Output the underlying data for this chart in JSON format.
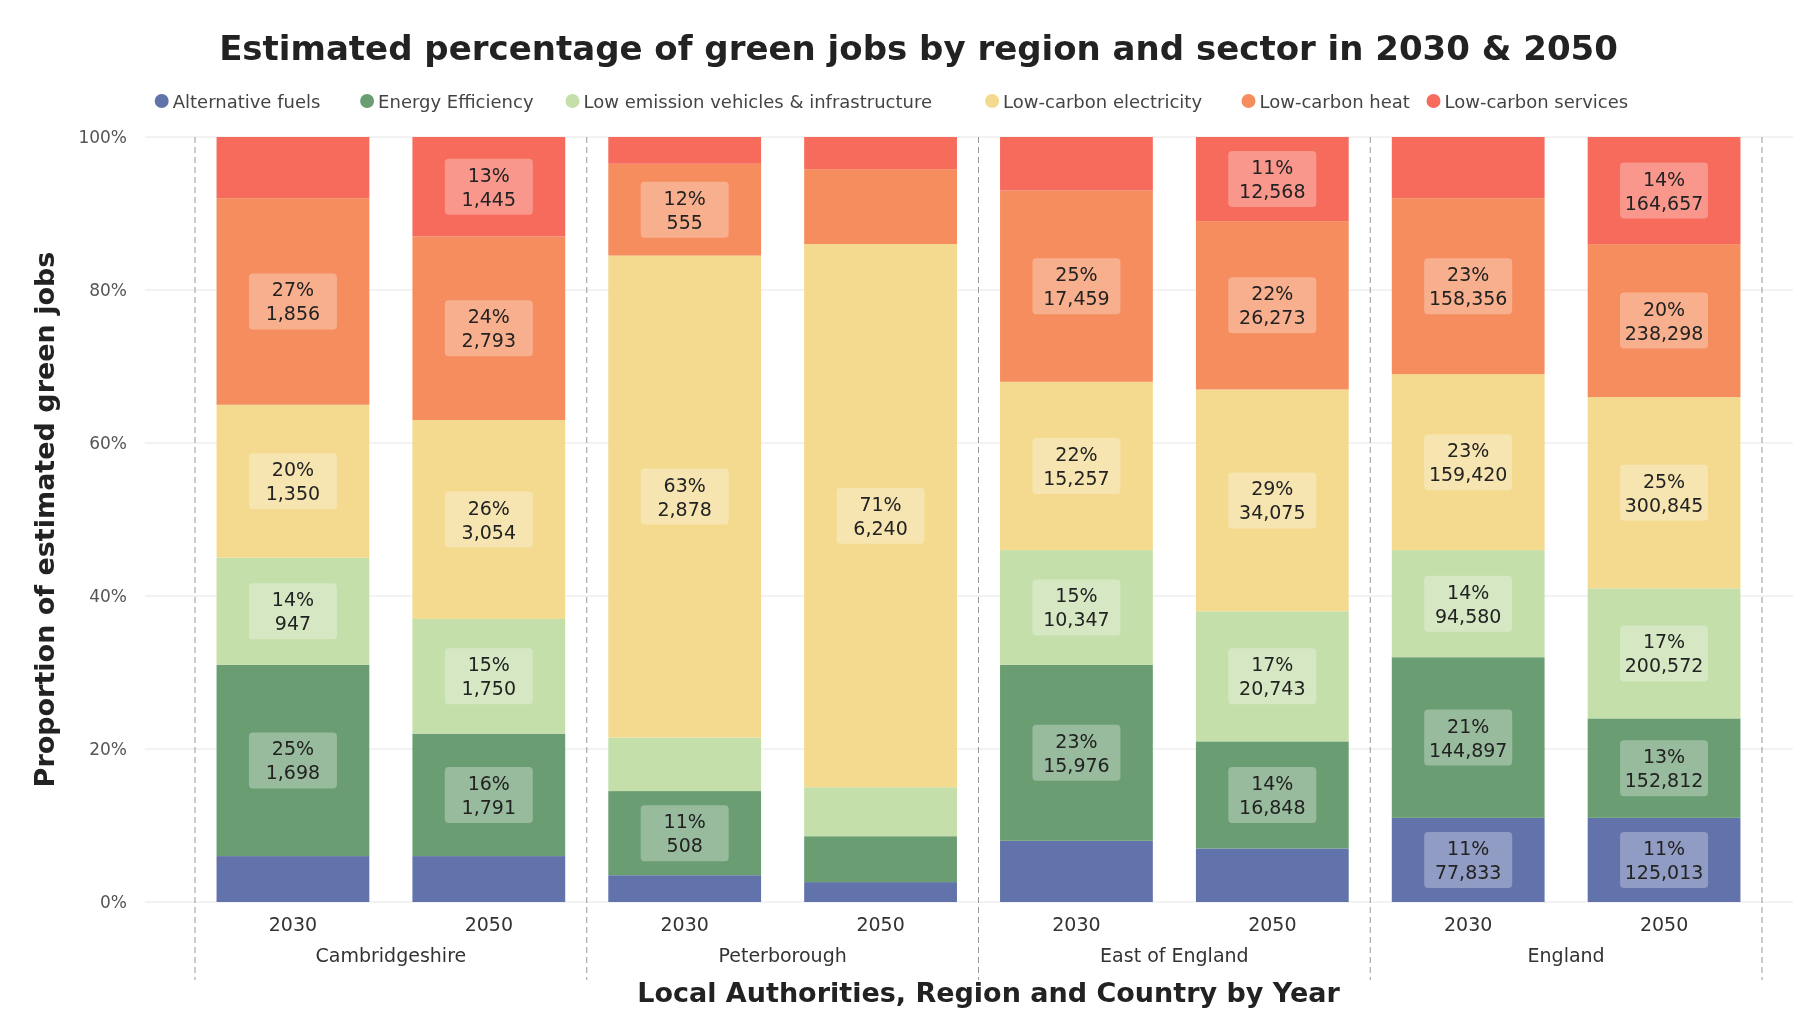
{
  "chart_data": {
    "type": "bar",
    "stacked": true,
    "title": "Estimated percentage of green jobs by region and sector in 2030 & 2050",
    "xlabel": "Local Authorities, Region and Country by Year",
    "ylabel": "Proportion of estimated green jobs",
    "categories": [
      "2030",
      "2050",
      "2030",
      "2050",
      "2030",
      "2050",
      "2030",
      "2050"
    ],
    "annotations": [
      "Cambridgeshire",
      "Peterborough",
      "East of England",
      "England"
    ],
    "ylim": [
      0,
      100
    ],
    "yticks": [
      {
        "value": 0,
        "label": "0%"
      },
      {
        "value": 20,
        "label": "20%"
      },
      {
        "value": 40,
        "label": "40%"
      },
      {
        "value": 60,
        "label": "60%"
      },
      {
        "value": 80,
        "label": "80%"
      },
      {
        "value": 100,
        "label": "100%"
      }
    ],
    "grid": "y",
    "legend": "top",
    "series": [
      {
        "name": "Alternative fuels",
        "color": "#6272ab",
        "values": [
          6,
          6,
          3.5,
          2.6,
          8,
          7,
          11,
          11
        ],
        "value_labels": [
          null,
          null,
          null,
          null,
          null,
          null,
          "11%\n77,833",
          "11%\n125,013"
        ]
      },
      {
        "name": "Energy Efficiency",
        "color": "#6a9e72",
        "values": [
          25,
          16,
          11,
          6,
          23,
          14,
          21,
          13
        ],
        "value_labels": [
          "25%\n1,698",
          "16%\n1,791",
          "11%\n508",
          null,
          "23%\n15,976",
          "14%\n16,848",
          "21%\n144,897",
          "13%\n152,812"
        ]
      },
      {
        "name": "Low emission vehicles & infrastructure",
        "color": "#c4dfa9",
        "values": [
          14,
          15,
          7,
          6.4,
          15,
          17,
          14,
          17
        ],
        "value_labels": [
          "14%\n947",
          "15%\n1,750",
          null,
          null,
          "15%\n10,347",
          "17%\n20,743",
          "14%\n94,580",
          "17%\n200,572"
        ]
      },
      {
        "name": "Low-carbon electricity",
        "color": "#f3da8e",
        "values": [
          20,
          26,
          63,
          71,
          22,
          29,
          23,
          25
        ],
        "value_labels": [
          "20%\n1,350",
          "26%\n3,054",
          "63%\n2,878",
          "71%\n6,240",
          "22%\n15,257",
          "29%\n34,075",
          "23%\n159,420",
          "25%\n300,845"
        ]
      },
      {
        "name": "Low-carbon heat",
        "color": "#f58d5e",
        "values": [
          27,
          24,
          12,
          9.8,
          25,
          22,
          23,
          20
        ],
        "value_labels": [
          "27%\n1,856",
          "24%\n2,793",
          "12%\n555",
          null,
          "25%\n17,459",
          "22%\n26,273",
          "23%\n158,356",
          "20%\n238,298"
        ]
      },
      {
        "name": "Low-carbon services",
        "color": "#f66b5c",
        "values": [
          8,
          13,
          3.5,
          4.2,
          7,
          11,
          8,
          14
        ],
        "value_labels": [
          null,
          "13%\n1,445",
          null,
          null,
          null,
          "11%\n12,568",
          null,
          "14%\n164,657"
        ]
      }
    ]
  }
}
